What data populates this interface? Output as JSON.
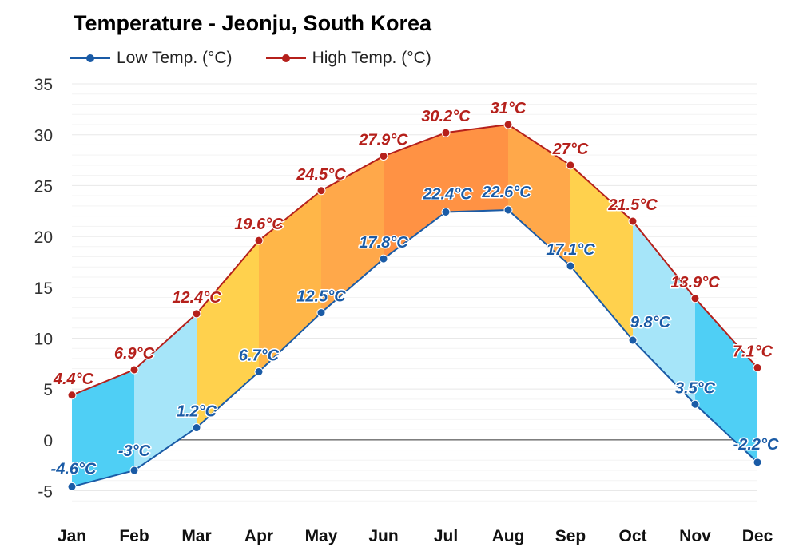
{
  "chart_data": {
    "type": "area",
    "title": "Temperature - Jeonju, South Korea",
    "categories": [
      "Jan",
      "Feb",
      "Mar",
      "Apr",
      "May",
      "Jun",
      "Jul",
      "Aug",
      "Sep",
      "Oct",
      "Nov",
      "Dec"
    ],
    "series": [
      {
        "name": "Low Temp. (°C)",
        "color": "#1a5ba6",
        "values": [
          -4.6,
          -3,
          1.2,
          6.7,
          12.5,
          17.8,
          22.4,
          22.6,
          17.1,
          9.8,
          3.5,
          -2.2
        ],
        "labels": [
          "-4.6°C",
          "-3°C",
          "1.2°C",
          "6.7°C",
          "12.5°C",
          "17.8°C",
          "22.4°C",
          "22.6°C",
          "17.1°C",
          "9.8°C",
          "3.5°C",
          "-2.2°C"
        ]
      },
      {
        "name": "High Temp. (°C)",
        "color": "#b5201b",
        "values": [
          4.4,
          6.9,
          12.4,
          19.6,
          24.5,
          27.9,
          30.2,
          31,
          27,
          21.5,
          13.9,
          7.1
        ],
        "labels": [
          "4.4°C",
          "6.9°C",
          "12.4°C",
          "19.6°C",
          "24.5°C",
          "27.9°C",
          "30.2°C",
          "31°C",
          "27°C",
          "21.5°C",
          "13.9°C",
          "7.1°C"
        ]
      }
    ],
    "band_colors": [
      "#4fcff5",
      "#a6e5f9",
      "#ffd14d",
      "#ffb648",
      "#ffa84a",
      "#ff9244",
      "#ff9244",
      "#ffa84a",
      "#ffd14d",
      "#a6e5f9",
      "#4fcff5",
      "#4fcff5"
    ],
    "ylim": [
      -7,
      35
    ],
    "yticks": [
      "35",
      "30",
      "25",
      "20",
      "15",
      "10",
      "5",
      "0",
      "-5"
    ],
    "ytick_values": [
      35,
      30,
      25,
      20,
      15,
      10,
      5,
      0,
      -5
    ],
    "grid": true,
    "legend_position": "top-left"
  }
}
